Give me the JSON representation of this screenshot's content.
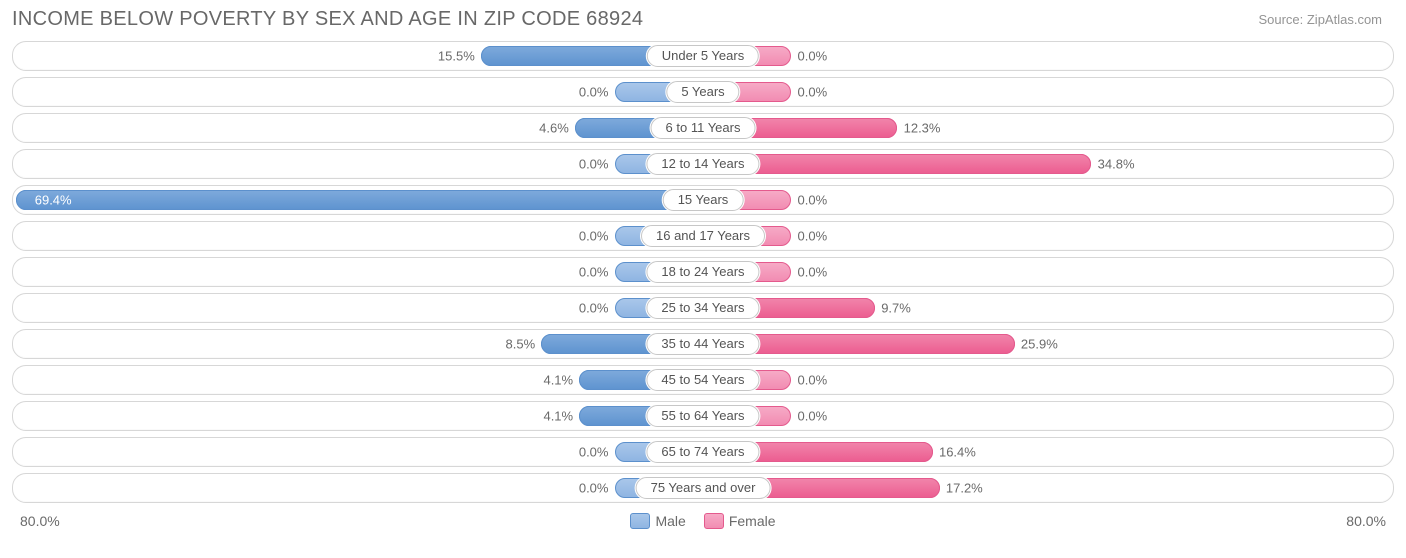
{
  "chart": {
    "type": "diverging-bar",
    "title": "INCOME BELOW POVERTY BY SEX AND AGE IN ZIP CODE 68924",
    "source": "Source: ZipAtlas.com",
    "axis_max": 80.0,
    "axis_left_label": "80.0%",
    "axis_right_label": "80.0%",
    "base_bar_pct": 10.0,
    "colors": {
      "male_fill_light_top": "#a9c7ea",
      "male_fill_light_bot": "#8fb5e2",
      "male_fill_dark_top": "#7da9db",
      "male_fill_dark_bot": "#5f94d0",
      "male_border": "#5c90cc",
      "female_fill_light_top": "#f6aac6",
      "female_fill_light_bot": "#f28cb2",
      "female_fill_dark_top": "#f183aa",
      "female_fill_dark_bot": "#ec5e91",
      "female_border": "#e45a8d",
      "row_border": "#d7d7d7",
      "title_color": "#686868",
      "label_color": "#6a6a6a",
      "source_color": "#949494",
      "background": "#ffffff"
    },
    "legend": {
      "male": "Male",
      "female": "Female"
    },
    "rows": [
      {
        "label": "Under 5 Years",
        "male": 15.5,
        "female": 0.0,
        "male_label": "15.5%",
        "female_label": "0.0%"
      },
      {
        "label": "5 Years",
        "male": 0.0,
        "female": 0.0,
        "male_label": "0.0%",
        "female_label": "0.0%"
      },
      {
        "label": "6 to 11 Years",
        "male": 4.6,
        "female": 12.3,
        "male_label": "4.6%",
        "female_label": "12.3%"
      },
      {
        "label": "12 to 14 Years",
        "male": 0.0,
        "female": 34.8,
        "male_label": "0.0%",
        "female_label": "34.8%"
      },
      {
        "label": "15 Years",
        "male": 69.4,
        "female": 0.0,
        "male_label": "69.4%",
        "female_label": "0.0%"
      },
      {
        "label": "16 and 17 Years",
        "male": 0.0,
        "female": 0.0,
        "male_label": "0.0%",
        "female_label": "0.0%"
      },
      {
        "label": "18 to 24 Years",
        "male": 0.0,
        "female": 0.0,
        "male_label": "0.0%",
        "female_label": "0.0%"
      },
      {
        "label": "25 to 34 Years",
        "male": 0.0,
        "female": 9.7,
        "male_label": "0.0%",
        "female_label": "9.7%"
      },
      {
        "label": "35 to 44 Years",
        "male": 8.5,
        "female": 25.9,
        "male_label": "8.5%",
        "female_label": "25.9%"
      },
      {
        "label": "45 to 54 Years",
        "male": 4.1,
        "female": 0.0,
        "male_label": "4.1%",
        "female_label": "0.0%"
      },
      {
        "label": "55 to 64 Years",
        "male": 4.1,
        "female": 0.0,
        "male_label": "4.1%",
        "female_label": "0.0%"
      },
      {
        "label": "65 to 74 Years",
        "male": 0.0,
        "female": 16.4,
        "male_label": "0.0%",
        "female_label": "16.4%"
      },
      {
        "label": "75 Years and over",
        "male": 0.0,
        "female": 17.2,
        "male_label": "0.0%",
        "female_label": "17.2%"
      }
    ]
  }
}
